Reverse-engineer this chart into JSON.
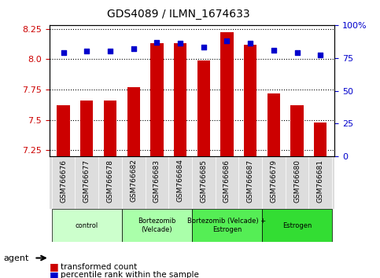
{
  "title": "GDS4089 / ILMN_1674633",
  "samples": [
    "GSM766676",
    "GSM766677",
    "GSM766678",
    "GSM766682",
    "GSM766683",
    "GSM766684",
    "GSM766685",
    "GSM766686",
    "GSM766687",
    "GSM766679",
    "GSM766680",
    "GSM766681"
  ],
  "transformed_count": [
    7.62,
    7.66,
    7.66,
    7.77,
    8.13,
    8.13,
    7.99,
    8.22,
    8.12,
    7.72,
    7.62,
    7.48
  ],
  "percentile_rank": [
    79,
    80,
    80,
    82,
    87,
    86,
    83,
    88,
    86,
    81,
    79,
    77
  ],
  "ylim_left": [
    7.2,
    8.28
  ],
  "ylim_right": [
    0,
    100
  ],
  "yticks_left": [
    7.25,
    7.5,
    7.75,
    8.0,
    8.25
  ],
  "yticks_right": [
    0,
    25,
    50,
    75,
    100
  ],
  "ytick_labels_right": [
    "0",
    "25",
    "50",
    "75",
    "100%"
  ],
  "bar_color": "#cc0000",
  "dot_color": "#0000cc",
  "groups": [
    {
      "label": "control",
      "indices": [
        0,
        1,
        2
      ],
      "color": "#ccffcc"
    },
    {
      "label": "Bortezomib\n(Velcade)",
      "indices": [
        3,
        4,
        5
      ],
      "color": "#aaffaa"
    },
    {
      "label": "Bortezomib (Velcade) +\nEstrogen",
      "indices": [
        6,
        7,
        8
      ],
      "color": "#55ee55"
    },
    {
      "label": "Estrogen",
      "indices": [
        9,
        10,
        11
      ],
      "color": "#33dd33"
    }
  ],
  "legend_bar_label": "transformed count",
  "legend_dot_label": "percentile rank within the sample",
  "agent_label": "agent",
  "background_color": "#ffffff",
  "tick_label_color_left": "#cc0000",
  "tick_label_color_right": "#0000cc"
}
